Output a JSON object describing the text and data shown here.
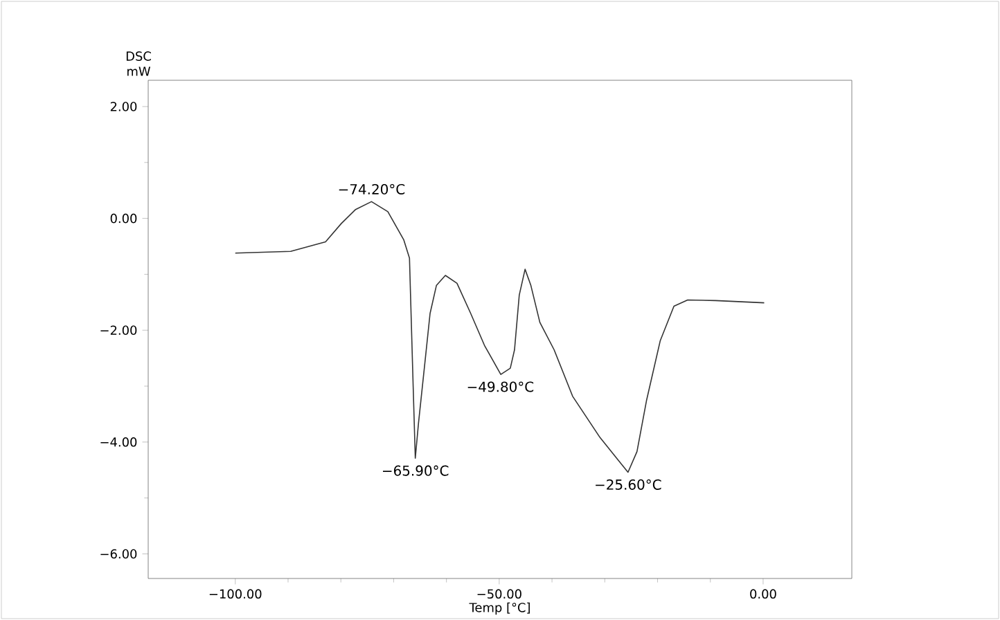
{
  "chart_data": {
    "type": "line",
    "xlabel": "Temp [°C]",
    "ylabel": "DSC mW",
    "x": [
      -100,
      -89.5,
      -82.9,
      -79.9,
      -77.2,
      -74.2,
      -71.1,
      -68.1,
      -67.0,
      -66.8,
      -66.3,
      -65.9,
      -65.3,
      -64.1,
      -63.1,
      -61.9,
      -60.2,
      -58.0,
      -55.4,
      -52.8,
      -49.7,
      -47.9,
      -47.1,
      -46.2,
      -45.1,
      -44.0,
      -42.3,
      -39.6,
      -36.1,
      -30.9,
      -27.4,
      -25.6,
      -23.9,
      -22.1,
      -19.5,
      -16.9,
      -14.3,
      -9.0,
      0.2
    ],
    "series": [
      {
        "color": "#333333",
        "values": [
          -0.62,
          -0.59,
          -0.42,
          -0.09,
          0.16,
          0.3,
          0.12,
          -0.38,
          -0.71,
          -1.37,
          -3.01,
          -4.29,
          -3.67,
          -2.6,
          -1.7,
          -1.2,
          -1.02,
          -1.16,
          -1.7,
          -2.27,
          -2.79,
          -2.68,
          -2.35,
          -1.37,
          -0.91,
          -1.2,
          -1.86,
          -2.35,
          -3.18,
          -3.92,
          -4.33,
          -4.54,
          -4.17,
          -3.26,
          -2.19,
          -1.57,
          -1.46,
          -1.47,
          -1.51
        ]
      }
    ],
    "xlim": [
      -116.5,
      16.8
    ],
    "ylim": [
      -6.44,
      2.47
    ],
    "xticks": [
      {
        "value": -100,
        "label": "−100.00"
      },
      {
        "value": -50,
        "label": "−50.00"
      },
      {
        "value": 0,
        "label": "0.00"
      }
    ],
    "yticks": [
      {
        "value": -6,
        "label": "−6.00"
      },
      {
        "value": -4,
        "label": "−4.00"
      },
      {
        "value": -2,
        "label": "−2.00"
      },
      {
        "value": 0,
        "label": "0.00"
      },
      {
        "value": 2,
        "label": "2.00"
      }
    ],
    "annotations": [
      {
        "text": "−74.20°C",
        "x": -74.2,
        "y": 0.3
      },
      {
        "text": "−65.90°C",
        "x": -65.9,
        "y": -4.29
      },
      {
        "text": "−49.80°C",
        "x": -49.8,
        "y": -2.79
      },
      {
        "text": "−25.60°C",
        "x": -25.6,
        "y": -4.54
      }
    ],
    "marker": "none"
  }
}
